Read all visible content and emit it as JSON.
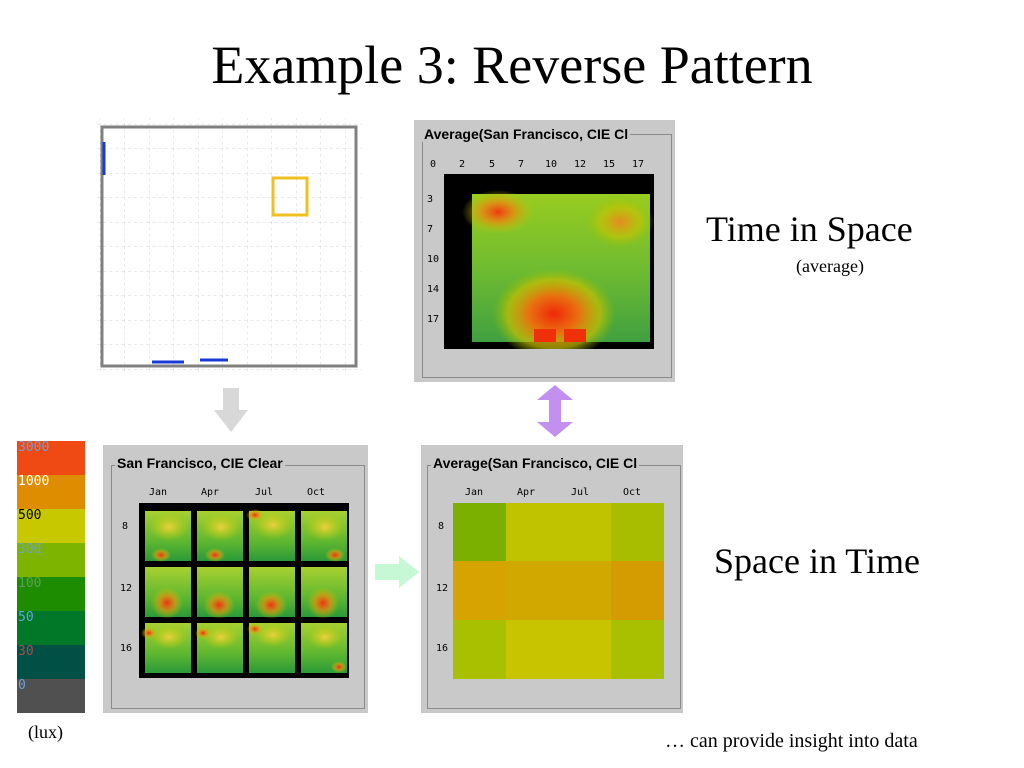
{
  "slide": {
    "title": "Example 3: Reverse Pattern",
    "time_in_space": "Time in Space",
    "time_in_space_sub": "(average)",
    "space_in_time": "Space in Time",
    "footnote": "… can provide insight into data",
    "unit": "(lux)"
  },
  "legend": {
    "items": [
      {
        "label": "3000",
        "color": "#f04a14",
        "text_color": "#6aa0d8"
      },
      {
        "label": "1000",
        "color": "#de8c00",
        "text_color": "#ffffff"
      },
      {
        "label": "500",
        "color": "#c8c800",
        "text_color": "#000000"
      },
      {
        "label": "300",
        "color": "#7cb400",
        "text_color": "#6aa0d8"
      },
      {
        "label": "100",
        "color": "#1e8c00",
        "text_color": "#5aa05a"
      },
      {
        "label": "50",
        "color": "#007828",
        "text_color": "#6aa0d8"
      },
      {
        "label": "30",
        "color": "#005046",
        "text_color": "#b04a4a"
      },
      {
        "label": "0",
        "color": "#505050",
        "text_color": "#6aa0d8"
      }
    ]
  },
  "avg_space": {
    "title": "Average(San Francisco, CIE Cl",
    "x_ticks": [
      "0",
      "2",
      "5",
      "7",
      "10",
      "12",
      "15",
      "17"
    ],
    "y_ticks": [
      "3",
      "7",
      "10",
      "14",
      "17"
    ]
  },
  "sf_grid": {
    "title": "San Francisco, CIE Clear",
    "months": [
      "Jan",
      "Apr",
      "Jul",
      "Oct"
    ],
    "hours": [
      "8",
      "12",
      "16"
    ]
  },
  "avg_time": {
    "title": "Average(San Francisco, CIE Cl",
    "months": [
      "Jan",
      "Apr",
      "Jul",
      "Oct"
    ],
    "hours": [
      "8",
      "12",
      "16"
    ],
    "cell_colors": [
      [
        "#7cb000",
        "#c0c400",
        "#c0c400",
        "#a8bc00"
      ],
      [
        "#d6a400",
        "#d0a800",
        "#d0a800",
        "#d49c00"
      ],
      [
        "#a8c000",
        "#c8c400",
        "#c8c400",
        "#a8c000"
      ]
    ]
  }
}
